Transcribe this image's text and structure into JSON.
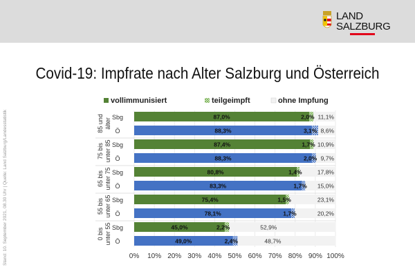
{
  "logo": {
    "line1": "LAND",
    "line2": "SALZBURG"
  },
  "title": "Covid-19: Impfrate nach Alter Salzburg und Österreich",
  "side_note": "Stand: 10. September  2021, 08.30 Uhr  |  Quelle: Land Salzburg/Landesstatistik",
  "colors": {
    "sbg": "#548235",
    "oe": "#4472c4",
    "none": "#f2f2f2",
    "partial_green": "#a9d18e",
    "partial_blue": "#9dc3e6"
  },
  "chart_data": {
    "type": "bar",
    "orientation": "horizontal",
    "stacked": "100%",
    "title": "",
    "legend": [
      "vollimmunisiert",
      "teilgeimpft",
      "ohne Impfung"
    ],
    "legend_position": "top",
    "xlim": [
      0,
      100
    ],
    "xticks": [
      "0%",
      "10%",
      "20%",
      "30%",
      "40%",
      "50%",
      "60%",
      "70%",
      "80%",
      "90%",
      "100%"
    ],
    "groups": [
      {
        "label": [
          "85 und",
          "älter"
        ],
        "rows": [
          {
            "name": "Sbg",
            "values": [
              87.0,
              2.0,
              11.1
            ],
            "labels": [
              "87,0%",
              "2,0%",
              "11,1%"
            ]
          },
          {
            "name": "Ö",
            "values": [
              88.3,
              3.1,
              8.6
            ],
            "labels": [
              "88,3%",
              "3,1%",
              "8,6%"
            ]
          }
        ]
      },
      {
        "label": [
          "75 bis",
          "unter 85"
        ],
        "rows": [
          {
            "name": "Sbg",
            "values": [
              87.4,
              1.7,
              10.9
            ],
            "labels": [
              "87,4%",
              "1,7%",
              "10,9%"
            ]
          },
          {
            "name": "Ö",
            "values": [
              88.3,
              2.0,
              9.7
            ],
            "labels": [
              "88,3%",
              "2,0%",
              "9,7%"
            ]
          }
        ]
      },
      {
        "label": [
          "65 bis",
          "unter 75"
        ],
        "rows": [
          {
            "name": "Sbg",
            "values": [
              80.8,
              1.4,
              17.8
            ],
            "labels": [
              "80,8%",
              "1,4%",
              "17,8%"
            ]
          },
          {
            "name": "Ö",
            "values": [
              83.3,
              1.7,
              15.0
            ],
            "labels": [
              "83,3%",
              "1,7%",
              "15,0%"
            ]
          }
        ]
      },
      {
        "label": [
          "55 bis",
          "unter 65"
        ],
        "rows": [
          {
            "name": "Sbg",
            "values": [
              75.4,
              1.5,
              23.1
            ],
            "labels": [
              "75,4%",
              "1,5%",
              "23,1%"
            ]
          },
          {
            "name": "Ö",
            "values": [
              78.1,
              1.7,
              20.2
            ],
            "labels": [
              "78,1%",
              "1,7%",
              "20,2%"
            ]
          }
        ]
      },
      {
        "label": [
          "0 bis",
          "unter 55"
        ],
        "rows": [
          {
            "name": "Sbg",
            "values": [
              45.0,
              2.2,
              52.9
            ],
            "labels": [
              "45,0%",
              "2,2%",
              "52,9%"
            ]
          },
          {
            "name": "Ö",
            "values": [
              49.0,
              2.4,
              48.7
            ],
            "labels": [
              "49,0%",
              "2,4%",
              "48,7%"
            ]
          }
        ]
      }
    ]
  }
}
